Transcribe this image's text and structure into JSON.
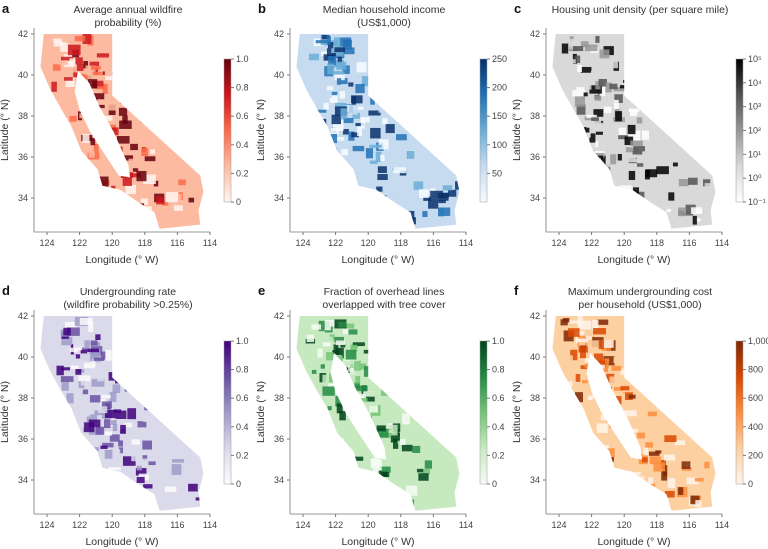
{
  "axes": {
    "xlabel": "Longitude (° W)",
    "ylabel": "Latitude (° N)",
    "xticks": [
      "124",
      "122",
      "120",
      "118",
      "116",
      "114"
    ],
    "yticks": [
      "34",
      "36",
      "38",
      "40",
      "42"
    ],
    "xlim": [
      125,
      114
    ],
    "ylim": [
      32.5,
      42.5
    ]
  },
  "panels": [
    {
      "label": "a",
      "title": [
        "Average annual wildfire",
        "probability (%)"
      ],
      "cmap": [
        "#fff5f0",
        "#fcbba1",
        "#fb6a4a",
        "#cb181d",
        "#67000d"
      ],
      "cbar_ticks": [
        "0",
        "0.2",
        "0.4",
        "0.6",
        "0.8",
        "1.0"
      ],
      "cbar_range": [
        0,
        1
      ],
      "cbar_scale": "linear"
    },
    {
      "label": "b",
      "title": [
        "Median household income",
        "(US$1,000)"
      ],
      "cmap": [
        "#f7fbff",
        "#c6dbef",
        "#6baed6",
        "#2171b5",
        "#08306b"
      ],
      "cbar_ticks": [
        "50",
        "100",
        "150",
        "200",
        "250"
      ],
      "cbar_range": [
        0,
        250
      ],
      "cbar_scale": "linear"
    },
    {
      "label": "c",
      "title": [
        "Housing unit density (per square mile)"
      ],
      "cmap": [
        "#ffffff",
        "#d9d9d9",
        "#969696",
        "#525252",
        "#000000"
      ],
      "cbar_ticks": [
        "10⁻¹",
        "10⁰",
        "10¹",
        "10²",
        "10³",
        "10⁴",
        "10⁵"
      ],
      "cbar_range": [
        0.1,
        100000
      ],
      "cbar_scale": "log"
    },
    {
      "label": "d",
      "title": [
        "Undergrounding rate",
        "(wildfire probability >0.25%)"
      ],
      "cmap": [
        "#fcfbfd",
        "#dadaeb",
        "#9e9ac8",
        "#6a51a3",
        "#3f007d"
      ],
      "cbar_ticks": [
        "0",
        "0.2",
        "0.4",
        "0.6",
        "0.8",
        "1.0"
      ],
      "cbar_range": [
        0,
        1
      ],
      "cbar_scale": "linear"
    },
    {
      "label": "e",
      "title": [
        "Fraction of overhead lines",
        "overlapped with tree cover"
      ],
      "cmap": [
        "#f7fcf5",
        "#c7e9c0",
        "#74c476",
        "#238b45",
        "#00441b"
      ],
      "cbar_ticks": [
        "0",
        "0.2",
        "0.4",
        "0.6",
        "0.8",
        "1.0"
      ],
      "cbar_range": [
        0,
        1
      ],
      "cbar_scale": "linear"
    },
    {
      "label": "f",
      "title": [
        "Maximum undergrounding cost",
        "per household (US$1,000)"
      ],
      "cmap": [
        "#fff5eb",
        "#fdd0a2",
        "#fd8d3c",
        "#d94801",
        "#7f2704"
      ],
      "cbar_ticks": [
        "0",
        "200",
        "400",
        "600",
        "800",
        "1,000"
      ],
      "cbar_range": [
        0,
        1000
      ],
      "cbar_scale": "linear"
    }
  ]
}
